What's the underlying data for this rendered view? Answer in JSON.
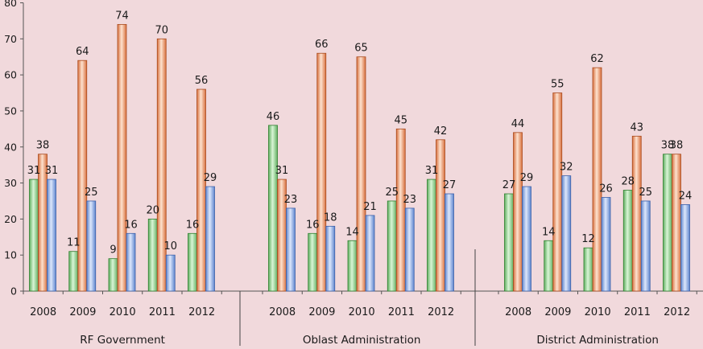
{
  "chart_data": {
    "type": "bar",
    "title": "",
    "xlabel": "",
    "ylabel": "",
    "ylim": [
      0,
      80
    ],
    "yticks": [
      0,
      10,
      20,
      30,
      40,
      50,
      60,
      70,
      80
    ],
    "grid": false,
    "legend": "none",
    "colors": [
      "#8fd18f",
      "#f0a070",
      "#8aa9e6"
    ],
    "groups": [
      {
        "name": "RF Government",
        "categories": [
          "2008",
          "2009",
          "2010",
          "2011",
          "2012"
        ],
        "series": [
          {
            "values": [
              31,
              11,
              9,
              20,
              16
            ]
          },
          {
            "values": [
              38,
              64,
              74,
              70,
              56
            ]
          },
          {
            "values": [
              31,
              25,
              16,
              10,
              29
            ]
          }
        ]
      },
      {
        "name": "Oblast Administration",
        "categories": [
          "2008",
          "2009",
          "2010",
          "2011",
          "2012"
        ],
        "series": [
          {
            "values": [
              46,
              16,
              14,
              25,
              31
            ]
          },
          {
            "values": [
              31,
              66,
              65,
              45,
              42
            ]
          },
          {
            "values": [
              23,
              18,
              21,
              23,
              27
            ]
          }
        ]
      },
      {
        "name": "District Administration",
        "categories": [
          "2008",
          "2009",
          "2010",
          "2011",
          "2012"
        ],
        "series": [
          {
            "values": [
              27,
              14,
              12,
              28,
              38
            ]
          },
          {
            "values": [
              44,
              55,
              62,
              43,
              38
            ]
          },
          {
            "values": [
              29,
              32,
              26,
              25,
              24
            ]
          }
        ]
      }
    ]
  }
}
